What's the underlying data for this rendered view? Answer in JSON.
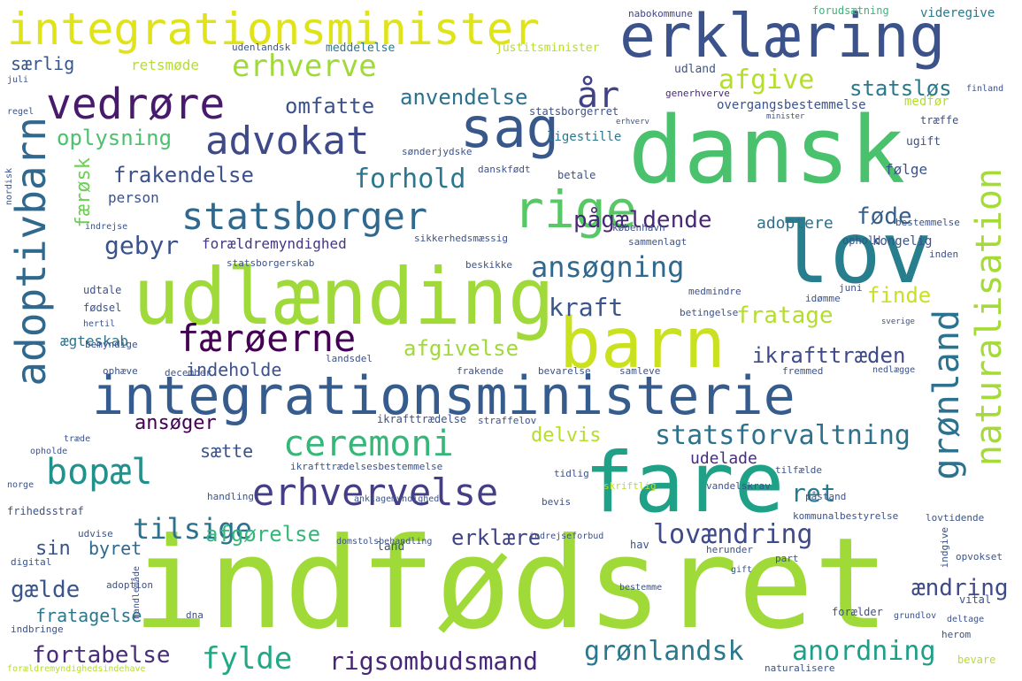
{
  "words": [
    {
      "t": "indfødsret",
      "c": "#a0da39"
    },
    {
      "t": "dansk",
      "c": "#4ac16d"
    },
    {
      "t": "fare",
      "c": "#1fa187"
    },
    {
      "t": "lov",
      "c": "#277f8e"
    },
    {
      "t": "udlænding",
      "c": "#9fda3a"
    },
    {
      "t": "barn",
      "c": "#cae11f"
    },
    {
      "t": "integrationsministerie",
      "c": "#365c8d"
    },
    {
      "t": "erklæring",
      "c": "#3b528b"
    },
    {
      "t": "integrationsminister",
      "c": "#dfe318"
    },
    {
      "t": "sag",
      "c": "#38588c"
    },
    {
      "t": "rige",
      "c": "#58c765"
    },
    {
      "t": "adoptivbarn",
      "c": "#31688e"
    },
    {
      "t": "naturalisation",
      "c": "#a5db36"
    },
    {
      "t": "grønland",
      "c": "#2c728e"
    },
    {
      "t": "advokat",
      "c": "#3e4a89"
    },
    {
      "t": "vedrøre",
      "c": "#481a6c"
    },
    {
      "t": "statsborger",
      "c": "#31688e"
    },
    {
      "t": "erhvervelse",
      "c": "#433e85"
    },
    {
      "t": "færøerne",
      "c": "#440154"
    },
    {
      "t": "ceremoni",
      "c": "#35b779"
    },
    {
      "t": "bopæl",
      "c": "#21918c"
    },
    {
      "t": "erhverve",
      "c": "#a0da39"
    },
    {
      "t": "ansøgning",
      "c": "#31688e"
    },
    {
      "t": "år",
      "c": "#404387"
    },
    {
      "t": "anordning",
      "c": "#1f9e89"
    },
    {
      "t": "grønlandsk",
      "c": "#2a788e"
    },
    {
      "t": "lovændring",
      "c": "#3e4a89"
    },
    {
      "t": "statsforvaltning",
      "c": "#2c728e"
    },
    {
      "t": "rigsombudsmand",
      "c": "#482677"
    },
    {
      "t": "fylde",
      "c": "#22a884"
    },
    {
      "t": "fortabelse",
      "c": "#472d7b"
    },
    {
      "t": "tilsige",
      "c": "#2c728e"
    },
    {
      "t": "pågældende",
      "c": "#482878"
    },
    {
      "t": "forhold",
      "c": "#2a788e"
    },
    {
      "t": "frakendelse",
      "c": "#3b528b"
    },
    {
      "t": "oplysning",
      "c": "#4ac16d"
    },
    {
      "t": "omfatte",
      "c": "#3b528b"
    },
    {
      "t": "anvendelse",
      "c": "#2c728e"
    },
    {
      "t": "afgive",
      "c": "#b5de2b"
    },
    {
      "t": "statsløs",
      "c": "#2a788e"
    },
    {
      "t": "særlig",
      "c": "#39568c"
    },
    {
      "t": "retsmøde",
      "c": "#b5de2b"
    },
    {
      "t": "kraft",
      "c": "#39568c"
    },
    {
      "t": "fratage",
      "c": "#b5de2b"
    },
    {
      "t": "finde",
      "c": "#cae11f"
    },
    {
      "t": "føde",
      "c": "#355f8d"
    },
    {
      "t": "gebyr",
      "c": "#3b528b"
    },
    {
      "t": "forældremyndighed",
      "c": "#453781"
    },
    {
      "t": "adoptere",
      "c": "#2c728e"
    },
    {
      "t": "afgivelse",
      "c": "#a0da39"
    },
    {
      "t": "ikrafttræden",
      "c": "#3e4a89"
    },
    {
      "t": "indeholde",
      "c": "#3b528b"
    },
    {
      "t": "ægteskab",
      "c": "#2c728e"
    },
    {
      "t": "ansøger",
      "c": "#440154"
    },
    {
      "t": "delvis",
      "c": "#b5de2b"
    },
    {
      "t": "sætte",
      "c": "#3b528b"
    },
    {
      "t": "udelade",
      "c": "#472d7b"
    },
    {
      "t": "ret",
      "c": "#2a788e"
    },
    {
      "t": "afgørelse",
      "c": "#35b779"
    },
    {
      "t": "erklære",
      "c": "#404387"
    },
    {
      "t": "sin",
      "c": "#3b528b"
    },
    {
      "t": "byret",
      "c": "#31688e"
    },
    {
      "t": "gælde",
      "c": "#39568c"
    },
    {
      "t": "ændring",
      "c": "#3e4a89"
    },
    {
      "t": "fratagelse",
      "c": "#2a788e"
    },
    {
      "t": "person",
      "c": "#3b528b"
    },
    {
      "t": "færøsk",
      "c": "#6ece58"
    },
    {
      "t": "kongelig",
      "c": "#3b528b"
    },
    {
      "t": "følge",
      "c": "#3b528b"
    },
    {
      "t": "nabokommune",
      "c": "#414487"
    },
    {
      "t": "forudsætning",
      "c": "#35b779"
    },
    {
      "t": "videregive",
      "c": "#2a788e"
    },
    {
      "t": "udenlandsk",
      "c": "#39568c"
    },
    {
      "t": "meddelelse",
      "c": "#2a788e"
    },
    {
      "t": "justitsminister",
      "c": "#b5de2b"
    },
    {
      "t": "udland",
      "c": "#39568c"
    },
    {
      "t": "generhverve",
      "c": "#482878"
    },
    {
      "t": "overgangsbestemmelse",
      "c": "#3b528b"
    },
    {
      "t": "statsborgerret",
      "c": "#3b528b"
    },
    {
      "t": "medfør",
      "c": "#b5de2b"
    },
    {
      "t": "træffe",
      "c": "#3b528b"
    },
    {
      "t": "ligestille",
      "c": "#2a788e"
    },
    {
      "t": "ugift",
      "c": "#3b528b"
    },
    {
      "t": "sønderjydske",
      "c": "#3b528b"
    },
    {
      "t": "danskfødt",
      "c": "#3b528b"
    },
    {
      "t": "betale",
      "c": "#3b528b"
    },
    {
      "t": "bestemmelse",
      "c": "#3b528b"
    },
    {
      "t": "sikkerhedsmæssig",
      "c": "#3b528b"
    },
    {
      "t": "sammenlagt",
      "c": "#3b528b"
    },
    {
      "t": "ophold",
      "c": "#3b528b"
    },
    {
      "t": "københavn",
      "c": "#3b528b"
    },
    {
      "t": "statsborgerskab",
      "c": "#3b528b"
    },
    {
      "t": "beskikke",
      "c": "#3b528b"
    },
    {
      "t": "inden",
      "c": "#3b528b"
    },
    {
      "t": "udtale",
      "c": "#3b528b"
    },
    {
      "t": "medmindre",
      "c": "#3b528b"
    },
    {
      "t": "idømme",
      "c": "#3b528b"
    },
    {
      "t": "juni",
      "c": "#3b528b"
    },
    {
      "t": "fødsel",
      "c": "#3b528b"
    },
    {
      "t": "betingelse",
      "c": "#3b528b"
    },
    {
      "t": "bemyndige",
      "c": "#3b528b"
    },
    {
      "t": "landsdel",
      "c": "#3b528b"
    },
    {
      "t": "bevarelse",
      "c": "#3b528b"
    },
    {
      "t": "frakende",
      "c": "#3b528b"
    },
    {
      "t": "december",
      "c": "#3b528b"
    },
    {
      "t": "ophæve",
      "c": "#3b528b"
    },
    {
      "t": "samleve",
      "c": "#3b528b"
    },
    {
      "t": "fremmed",
      "c": "#3b528b"
    },
    {
      "t": "nedlægge",
      "c": "#3b528b"
    },
    {
      "t": "ikrafttrædelse",
      "c": "#3b528b"
    },
    {
      "t": "straffelov",
      "c": "#3b528b"
    },
    {
      "t": "ikrafttrædelsesbestemmelse",
      "c": "#3b528b"
    },
    {
      "t": "tidlig",
      "c": "#3b528b"
    },
    {
      "t": "skriftlig",
      "c": "#b5de2b"
    },
    {
      "t": "vandelskrav",
      "c": "#3b528b"
    },
    {
      "t": "tilfælde",
      "c": "#3b528b"
    },
    {
      "t": "påstand",
      "c": "#3b528b"
    },
    {
      "t": "handling",
      "c": "#3b528b"
    },
    {
      "t": "anklagemyndighed",
      "c": "#3b528b"
    },
    {
      "t": "bevis",
      "c": "#3b528b"
    },
    {
      "t": "frihedsstraf",
      "c": "#3b528b"
    },
    {
      "t": "kommunalbestyrelse",
      "c": "#3b528b"
    },
    {
      "t": "lovtidende",
      "c": "#3b528b"
    },
    {
      "t": "udvise",
      "c": "#3b528b"
    },
    {
      "t": "domstolsbehandling",
      "c": "#3b528b"
    },
    {
      "t": "indrejseforbud",
      "c": "#3b528b"
    },
    {
      "t": "land",
      "c": "#3b528b"
    },
    {
      "t": "hav",
      "c": "#3b528b"
    },
    {
      "t": "herunder",
      "c": "#3b528b"
    },
    {
      "t": "part",
      "c": "#3b528b"
    },
    {
      "t": "adoption",
      "c": "#3b528b"
    },
    {
      "t": "bestemme",
      "c": "#3b528b"
    },
    {
      "t": "opvokset",
      "c": "#3b528b"
    },
    {
      "t": "vital",
      "c": "#3b528b"
    },
    {
      "t": "dna",
      "c": "#3b528b"
    },
    {
      "t": "indbringe",
      "c": "#3b528b"
    },
    {
      "t": "forælder",
      "c": "#3b528b"
    },
    {
      "t": "grundlov",
      "c": "#3b528b"
    },
    {
      "t": "deltage",
      "c": "#3b528b"
    },
    {
      "t": "herom",
      "c": "#3b528b"
    },
    {
      "t": "bevare",
      "c": "#b5de2b"
    },
    {
      "t": "naturalisere",
      "c": "#3b528b"
    },
    {
      "t": "forældremyndighedsindehave",
      "c": "#b5de2b"
    },
    {
      "t": "digital",
      "c": "#3b528b"
    },
    {
      "t": "handlemåde",
      "c": "#3b528b"
    },
    {
      "t": "gift",
      "c": "#3b528b"
    },
    {
      "t": "indgive",
      "c": "#3b528b"
    },
    {
      "t": "juli",
      "c": "#3b528b"
    },
    {
      "t": "regel",
      "c": "#3b528b"
    },
    {
      "t": "nordisk",
      "c": "#3b528b"
    },
    {
      "t": "indrejse",
      "c": "#3b528b"
    },
    {
      "t": "hertil",
      "c": "#3b528b"
    },
    {
      "t": "opholde",
      "c": "#3b528b"
    },
    {
      "t": "norge",
      "c": "#3b528b"
    },
    {
      "t": "finland",
      "c": "#3b528b"
    },
    {
      "t": "minister",
      "c": "#3b528b"
    },
    {
      "t": "erhverv",
      "c": "#3b528b"
    },
    {
      "t": "sverige",
      "c": "#3b528b"
    },
    {
      "t": "træde",
      "c": "#3b528b"
    }
  ]
}
